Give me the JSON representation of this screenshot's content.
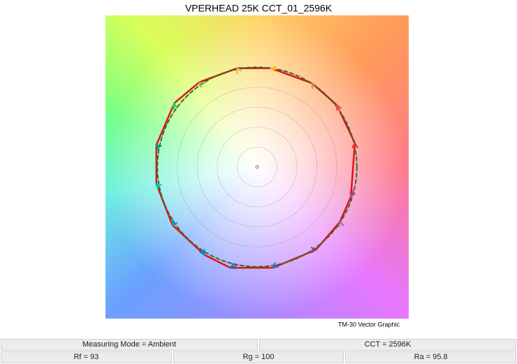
{
  "chart_data": {
    "type": "vector",
    "title": "VPERHEAD 25K CCT_01_2596K",
    "caption": "TM-30 Vector Graphic",
    "xlim": [
      -1.52,
      1.52
    ],
    "ylim": [
      -1.52,
      1.52
    ],
    "series": [
      {
        "color": "#e01414",
        "x": [
          0.98,
          0.8,
          0.55,
          0.14,
          -0.2,
          -0.58,
          -0.83,
          -1.01,
          -1.01,
          -0.85,
          -0.53,
          -0.27,
          0.16,
          0.59,
          0.83,
          0.94
        ],
        "y": [
          0.24,
          0.62,
          0.84,
          0.99,
          0.99,
          0.85,
          0.64,
          0.22,
          -0.17,
          -0.58,
          -0.88,
          -1.01,
          -1.01,
          -0.83,
          -0.55,
          -0.3
        ],
        "colors": [
          "#e62828",
          "#e74b4b",
          "#fb812e",
          "#ffb529",
          "#cbca46",
          "#7eb94c",
          "#41c06d",
          "#009c7c",
          "#16bcb0",
          "#00a4bf",
          "#0085c3",
          "#3b62aa",
          "#4568ae",
          "#6a4e85",
          "#9d69a1",
          "#a74f81"
        ]
      }
    ]
  },
  "table": {
    "rows": [
      [
        "Measuring Mode = Ambient",
        "CCT = 2596K"
      ],
      [
        "Rf = 93",
        "Rg = 100",
        "Ra = 95.8"
      ]
    ]
  }
}
